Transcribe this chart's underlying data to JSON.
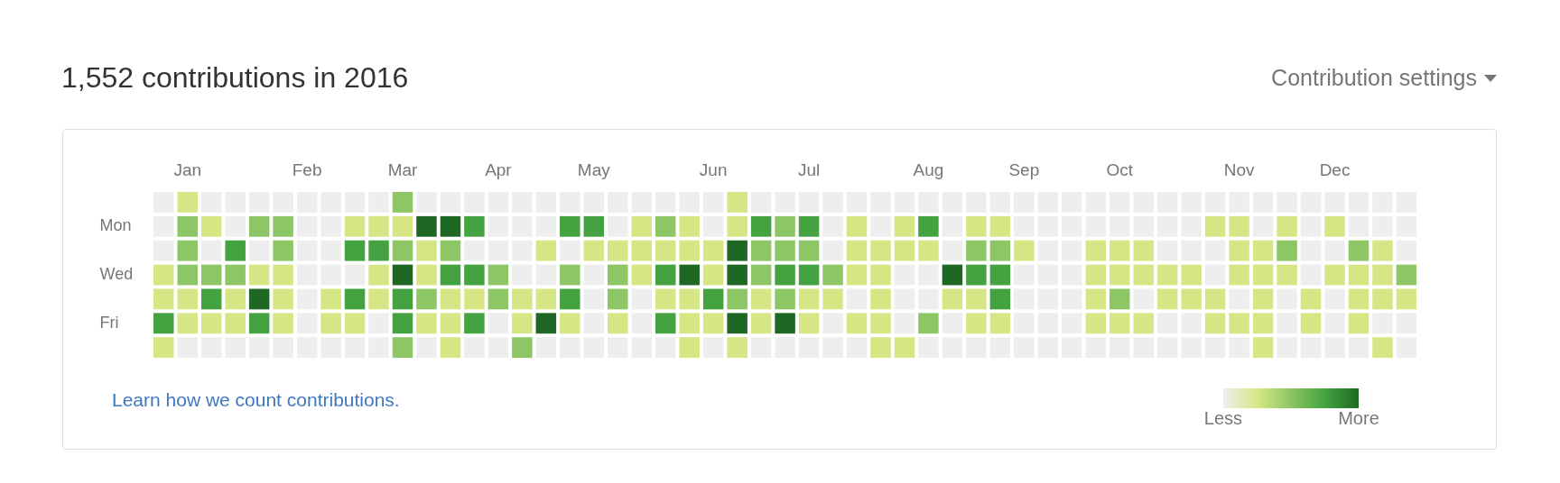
{
  "chart_data": {
    "type": "heatmap",
    "title": "1,552 contributions in 2016",
    "annotations": [
      "Contribution settings",
      "Learn how we count contributions."
    ],
    "categories": [
      null,
      "Jan",
      null,
      null,
      null,
      null,
      "Feb",
      null,
      null,
      null,
      "Mar",
      null,
      null,
      null,
      "Apr",
      null,
      null,
      null,
      "May",
      null,
      null,
      null,
      null,
      "Jun",
      null,
      null,
      null,
      "Jul",
      null,
      null,
      null,
      null,
      "Aug",
      null,
      null,
      null,
      "Sep",
      null,
      null,
      null,
      "Oct",
      null,
      null,
      null,
      null,
      "Nov",
      null,
      null,
      null,
      "Dec",
      null,
      null,
      null
    ],
    "y_categories": [
      null,
      "Mon",
      null,
      "Wed",
      null,
      "Fri",
      null
    ],
    "cells": [
      [
        0,
        1,
        0,
        0,
        0,
        0,
        0,
        0,
        0,
        0,
        2,
        0,
        0,
        0,
        0,
        0,
        0,
        0,
        0,
        0,
        0,
        0,
        0,
        0,
        1,
        0,
        0,
        0,
        0,
        0,
        0,
        0,
        0,
        0,
        0,
        0,
        0,
        0,
        0,
        0,
        0,
        0,
        0,
        0,
        0,
        0,
        0,
        0,
        0,
        0,
        0,
        0,
        0
      ],
      [
        0,
        2,
        1,
        0,
        2,
        2,
        0,
        0,
        1,
        1,
        1,
        4,
        4,
        3,
        0,
        0,
        0,
        3,
        3,
        0,
        1,
        2,
        1,
        0,
        1,
        3,
        2,
        3,
        0,
        1,
        0,
        1,
        3,
        0,
        1,
        1,
        0,
        0,
        0,
        0,
        0,
        0,
        0,
        0,
        1,
        1,
        0,
        1,
        0,
        1,
        0,
        0,
        0
      ],
      [
        0,
        2,
        0,
        3,
        0,
        2,
        0,
        0,
        3,
        3,
        2,
        1,
        2,
        0,
        0,
        0,
        1,
        0,
        1,
        1,
        1,
        1,
        1,
        1,
        4,
        2,
        2,
        2,
        0,
        1,
        1,
        1,
        1,
        0,
        2,
        2,
        1,
        0,
        0,
        1,
        1,
        1,
        0,
        0,
        0,
        1,
        1,
        2,
        0,
        0,
        2,
        1,
        0
      ],
      [
        1,
        2,
        2,
        2,
        1,
        1,
        0,
        0,
        0,
        1,
        4,
        1,
        3,
        3,
        2,
        0,
        0,
        2,
        0,
        2,
        1,
        3,
        4,
        1,
        4,
        2,
        3,
        3,
        2,
        1,
        1,
        0,
        0,
        4,
        3,
        3,
        0,
        0,
        0,
        1,
        1,
        1,
        1,
        1,
        0,
        1,
        1,
        1,
        0,
        1,
        1,
        1,
        2
      ],
      [
        1,
        1,
        3,
        1,
        4,
        1,
        0,
        1,
        3,
        1,
        3,
        2,
        1,
        1,
        2,
        1,
        1,
        3,
        0,
        2,
        0,
        1,
        1,
        3,
        2,
        1,
        2,
        1,
        1,
        0,
        1,
        0,
        0,
        1,
        1,
        3,
        0,
        0,
        0,
        1,
        2,
        0,
        1,
        1,
        1,
        0,
        1,
        0,
        1,
        0,
        1,
        1,
        1
      ],
      [
        3,
        1,
        1,
        1,
        3,
        1,
        0,
        1,
        1,
        0,
        3,
        1,
        1,
        3,
        0,
        1,
        4,
        1,
        0,
        1,
        0,
        3,
        1,
        1,
        4,
        1,
        4,
        1,
        0,
        1,
        1,
        0,
        2,
        0,
        1,
        1,
        0,
        0,
        0,
        1,
        1,
        1,
        0,
        0,
        1,
        1,
        1,
        0,
        1,
        0,
        1,
        0,
        0
      ],
      [
        1,
        0,
        0,
        0,
        0,
        0,
        0,
        0,
        0,
        0,
        2,
        0,
        1,
        0,
        0,
        2,
        0,
        0,
        0,
        0,
        0,
        0,
        1,
        0,
        1,
        0,
        0,
        0,
        0,
        0,
        1,
        1,
        0,
        0,
        0,
        0,
        0,
        0,
        0,
        0,
        0,
        0,
        0,
        0,
        0,
        0,
        1,
        0,
        0,
        0,
        0,
        1,
        0
      ]
    ],
    "colors": [
      "#eeeeee",
      "#d6e685",
      "#8cc665",
      "#44a340",
      "#1e6823"
    ],
    "clim": [
      0,
      4
    ],
    "cticks": [
      {
        "value": 0,
        "label": "Less"
      },
      {
        "value": 4,
        "label": "More"
      }
    ]
  }
}
